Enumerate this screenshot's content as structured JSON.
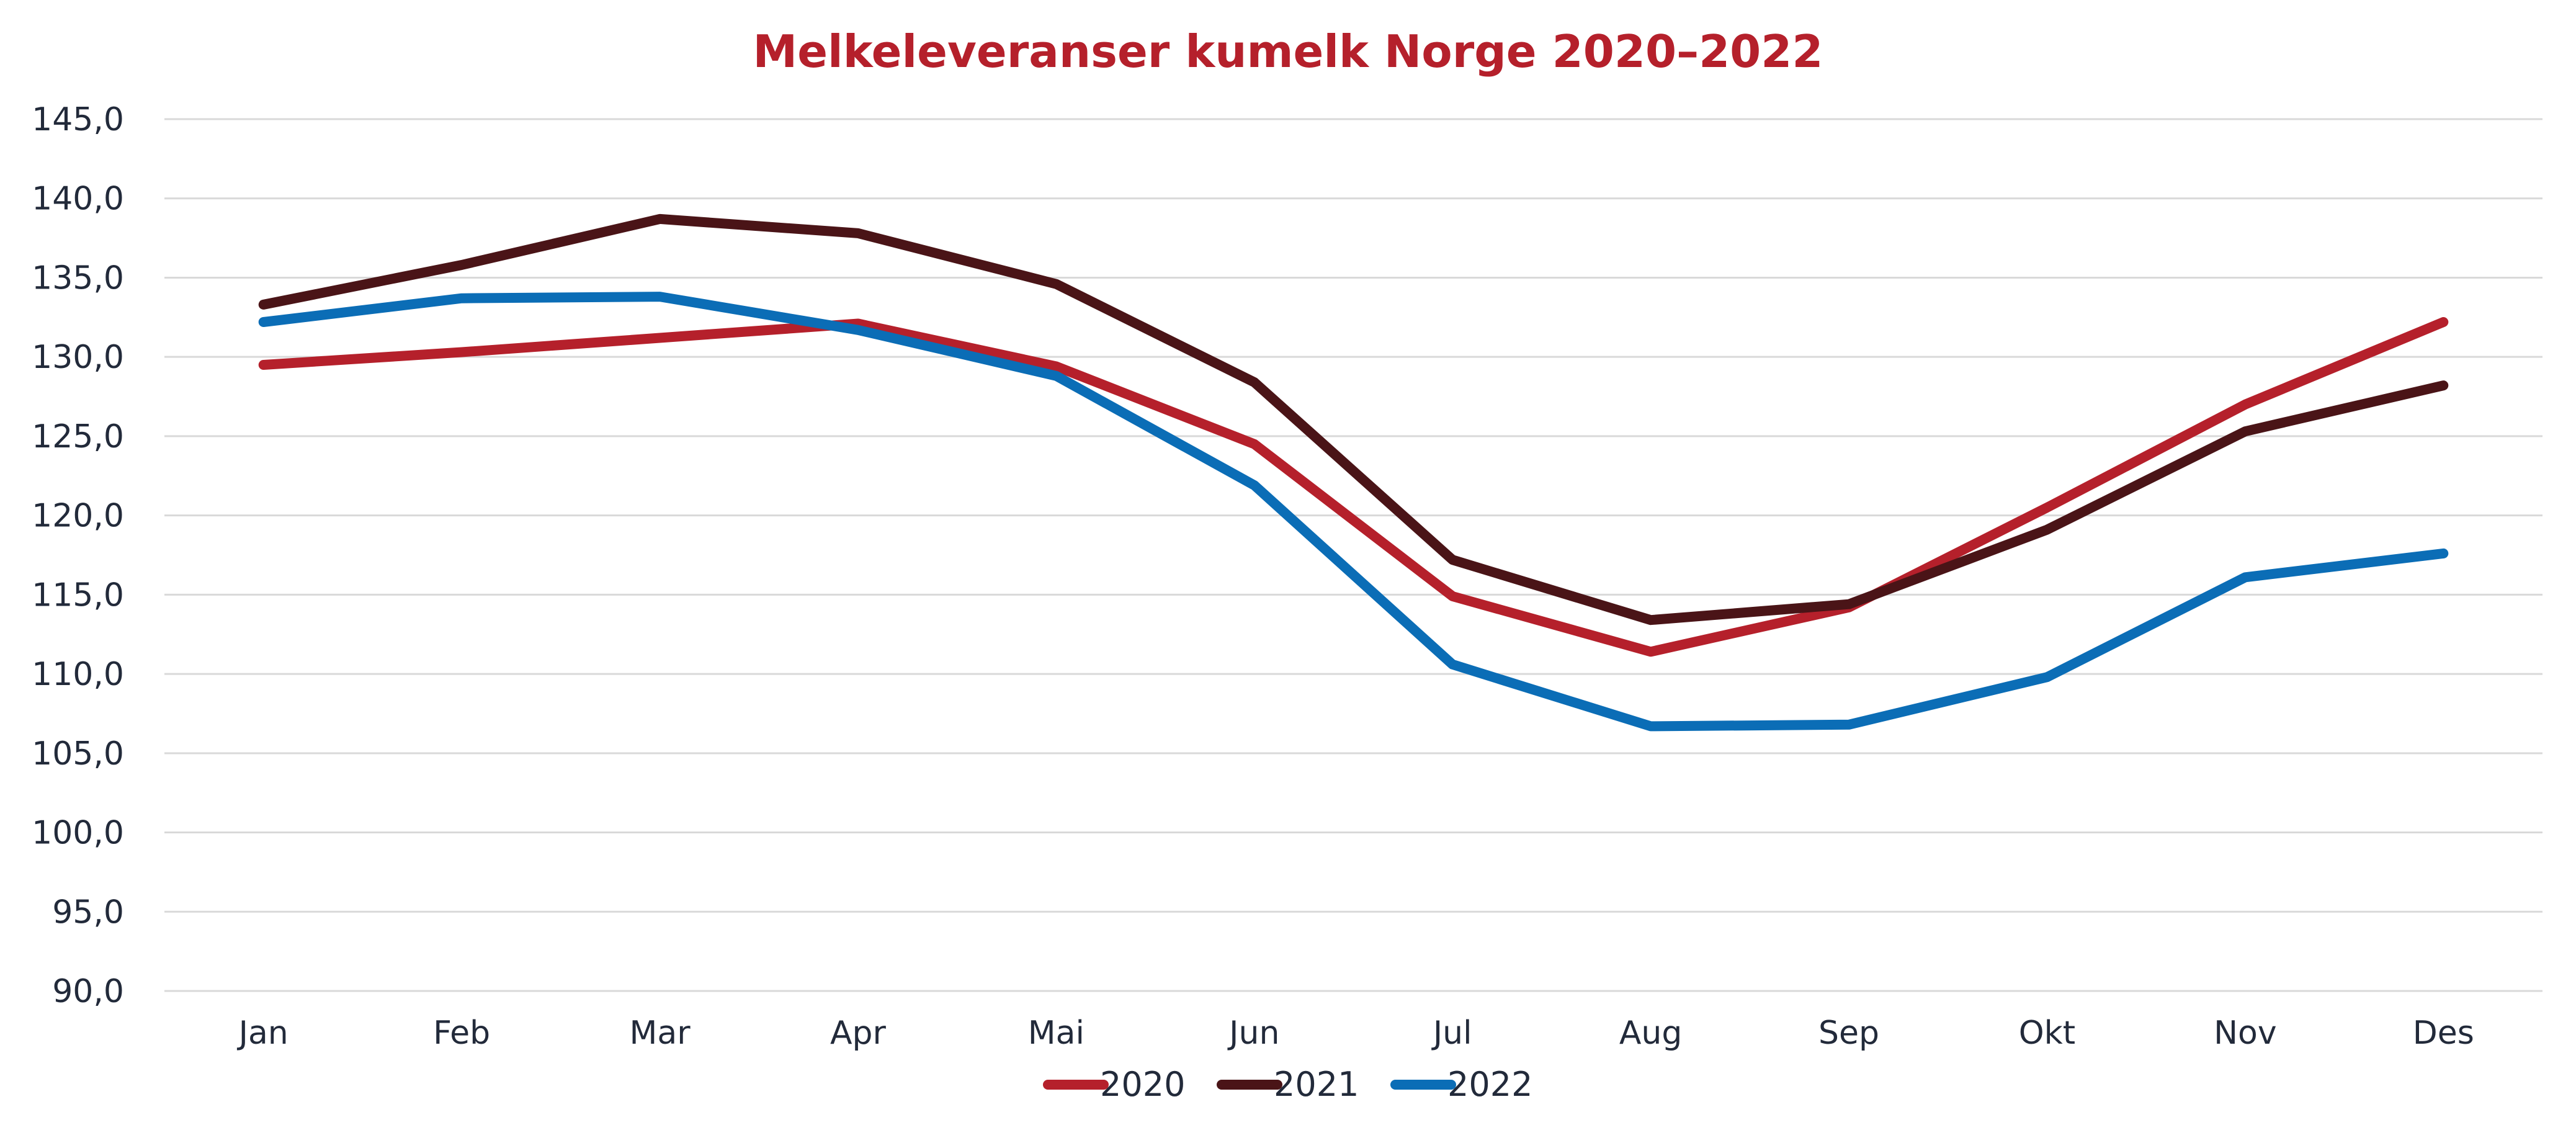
{
  "chart_data": {
    "type": "line",
    "title": "Melkeleveranser kumelk Norge 2020–2022",
    "xlabel": "",
    "ylabel": "",
    "categories": [
      "Jan",
      "Feb",
      "Mar",
      "Apr",
      "Mai",
      "Jun",
      "Jul",
      "Aug",
      "Sep",
      "Okt",
      "Nov",
      "Des"
    ],
    "ylim": [
      90,
      145
    ],
    "yticks": [
      "90,0",
      "95,0",
      "100,0",
      "105,0",
      "110,0",
      "115,0",
      "120,0",
      "125,0",
      "130,0",
      "135,0",
      "140,0",
      "145,0"
    ],
    "grid": true,
    "legend_position": "bottom",
    "series": [
      {
        "name": "2020",
        "color": "#b5202b",
        "values": [
          129.5,
          130.3,
          131.2,
          132.1,
          129.4,
          124.5,
          114.9,
          111.4,
          114.2,
          120.5,
          127.0,
          132.2
        ]
      },
      {
        "name": "2021",
        "color": "#4a1417",
        "values": [
          133.3,
          135.8,
          138.7,
          137.8,
          134.6,
          128.4,
          117.2,
          113.4,
          114.4,
          119.1,
          125.3,
          128.2
        ]
      },
      {
        "name": "2022",
        "color": "#0b6db6",
        "values": [
          132.2,
          133.7,
          133.8,
          131.7,
          128.8,
          121.9,
          110.6,
          106.7,
          106.8,
          109.8,
          116.1,
          117.6
        ]
      }
    ]
  }
}
